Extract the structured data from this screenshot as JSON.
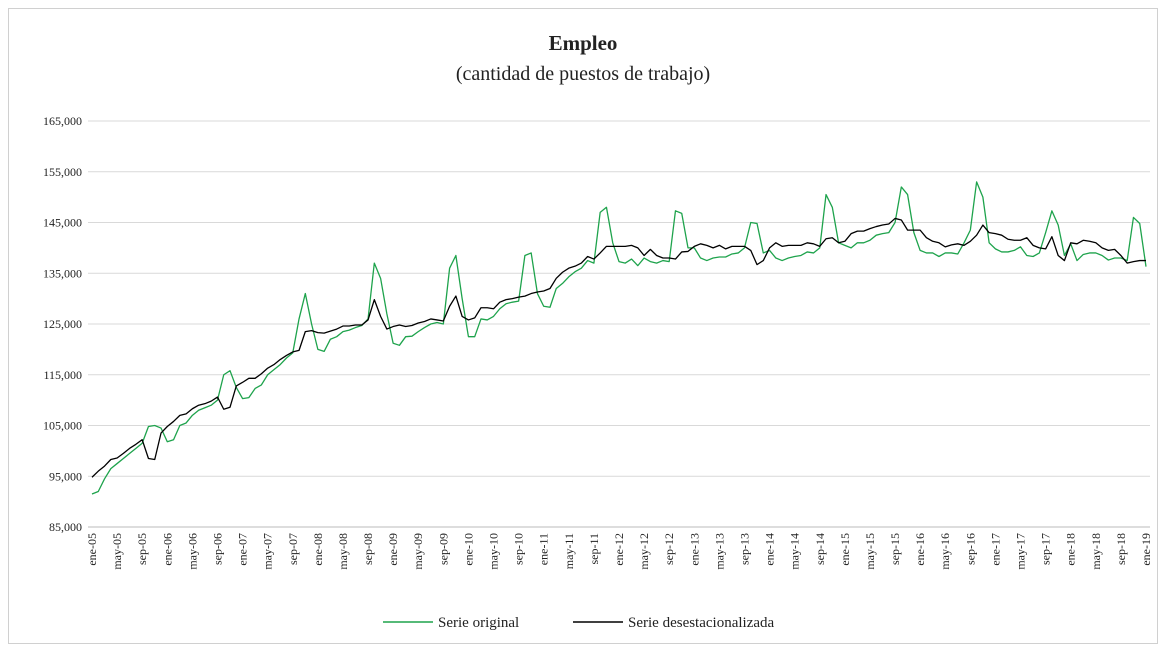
{
  "chart_data": {
    "type": "line",
    "title": "Empleo",
    "subtitle": "(cantidad de puestos de trabajo)",
    "categories": [
      "ene-05",
      null,
      null,
      null,
      "may-05",
      null,
      null,
      null,
      "sep-05",
      null,
      null,
      null,
      "ene-06",
      null,
      null,
      null,
      "may-06",
      null,
      null,
      null,
      "sep-06",
      null,
      null,
      null,
      "ene-07",
      null,
      null,
      null,
      "may-07",
      null,
      null,
      null,
      "sep-07",
      null,
      null,
      null,
      "ene-08",
      null,
      null,
      null,
      "may-08",
      null,
      null,
      null,
      "sep-08",
      null,
      null,
      null,
      "ene-09",
      null,
      null,
      null,
      "may-09",
      null,
      null,
      null,
      "sep-09",
      null,
      null,
      null,
      "ene-10",
      null,
      null,
      null,
      "may-10",
      null,
      null,
      null,
      "sep-10",
      null,
      null,
      null,
      "ene-11",
      null,
      null,
      null,
      "may-11",
      null,
      null,
      null,
      "sep-11",
      null,
      null,
      null,
      "ene-12",
      null,
      null,
      null,
      "may-12",
      null,
      null,
      null,
      "sep-12",
      null,
      null,
      null,
      "ene-13",
      null,
      null,
      null,
      "may-13",
      null,
      null,
      null,
      "sep-13",
      null,
      null,
      null,
      "ene-14",
      null,
      null,
      null,
      "may-14",
      null,
      null,
      null,
      "sep-14",
      null,
      null,
      null,
      "ene-15",
      null,
      null,
      null,
      "may-15",
      null,
      null,
      null,
      "sep-15",
      null,
      null,
      null,
      "ene-16",
      null,
      null,
      null,
      "may-16",
      null,
      null,
      null,
      "sep-16",
      null,
      null,
      null,
      "ene-17",
      null,
      null,
      null,
      "may-17",
      null,
      null,
      null,
      "sep-17",
      null,
      null,
      null,
      "ene-18",
      null,
      null,
      null,
      "may-18",
      null,
      null,
      null,
      "sep-18",
      null,
      null,
      null,
      "ene-19"
    ],
    "series": [
      {
        "name": "Serie original",
        "color": "#1ea34c",
        "values": [
          91500,
          92000,
          94500,
          96500,
          97500,
          98500,
          99500,
          100500,
          101500,
          104800,
          105000,
          104500,
          101800,
          102200,
          105000,
          105500,
          107000,
          108000,
          108500,
          109000,
          110000,
          115000,
          115800,
          112500,
          110300,
          110500,
          112300,
          113000,
          115000,
          116000,
          117000,
          118300,
          119300,
          126000,
          131000,
          125000,
          120000,
          119600,
          122000,
          122500,
          123500,
          123800,
          124300,
          124700,
          126000,
          137000,
          134000,
          127000,
          121200,
          120800,
          122500,
          122600,
          123500,
          124300,
          125000,
          125300,
          125000,
          136000,
          138500,
          130000,
          122500,
          122500,
          126000,
          125800,
          126500,
          128000,
          129000,
          129300,
          129500,
          138500,
          139000,
          131000,
          128500,
          128300,
          132000,
          133000,
          134300,
          135300,
          136000,
          137500,
          137000,
          147000,
          148000,
          141000,
          137300,
          137000,
          137800,
          136500,
          138000,
          137300,
          137000,
          137500,
          137300,
          147300,
          146800,
          140000,
          140000,
          138000,
          137500,
          138000,
          138200,
          138200,
          138800,
          139000,
          140000,
          145000,
          144800,
          139000,
          139500,
          138000,
          137500,
          138000,
          138300,
          138500,
          139200,
          139000,
          140000,
          150500,
          148000,
          141000,
          140500,
          140000,
          141000,
          141000,
          141500,
          142500,
          142800,
          143000,
          145000,
          152000,
          150500,
          143000,
          139500,
          139000,
          139000,
          138300,
          139000,
          139000,
          138800,
          141000,
          143500,
          153000,
          150000,
          141000,
          139800,
          139200,
          139200,
          139500,
          140200,
          138500,
          138300,
          139000,
          143000,
          147300,
          144500,
          138500,
          140800,
          137500,
          138700,
          139000,
          139000,
          138500,
          137600,
          138000,
          138000,
          137500,
          146000,
          144800,
          136300
        ]
      },
      {
        "name": "Serie desestacionalizada",
        "color": "#000000",
        "values": [
          94800,
          96000,
          97000,
          98300,
          98600,
          99500,
          100500,
          101300,
          102200,
          98500,
          98300,
          103500,
          104800,
          105800,
          107000,
          107300,
          108300,
          109000,
          109300,
          109800,
          110600,
          108200,
          108600,
          112800,
          113500,
          114300,
          114300,
          115200,
          116300,
          117000,
          118000,
          118800,
          119500,
          119800,
          123500,
          123700,
          123300,
          123200,
          123600,
          124000,
          124600,
          124600,
          124800,
          124800,
          125800,
          129800,
          126500,
          124000,
          124500,
          124800,
          124500,
          124700,
          125200,
          125500,
          126000,
          125800,
          125600,
          128500,
          130500,
          126500,
          125800,
          126200,
          128200,
          128200,
          128000,
          129300,
          129800,
          130000,
          130300,
          130500,
          131000,
          131300,
          131500,
          132000,
          134000,
          135200,
          136000,
          136400,
          137000,
          138300,
          137800,
          139000,
          140300,
          140300,
          140300,
          140300,
          140500,
          140000,
          138500,
          139700,
          138500,
          138000,
          138000,
          137800,
          139200,
          139300,
          140300,
          140800,
          140500,
          140000,
          140500,
          139800,
          140300,
          140300,
          140300,
          139500,
          136700,
          137500,
          140000,
          141000,
          140300,
          140500,
          140500,
          140500,
          141000,
          140800,
          140300,
          141800,
          142000,
          141000,
          141300,
          142800,
          143300,
          143300,
          143800,
          144200,
          144500,
          144700,
          145800,
          145500,
          143500,
          143500,
          143500,
          142000,
          141300,
          141000,
          140200,
          140600,
          140800,
          140500,
          141300,
          142500,
          144500,
          143000,
          142800,
          142500,
          141700,
          141500,
          141500,
          142000,
          140500,
          140000,
          139800,
          142200,
          138500,
          137500,
          141000,
          140800,
          141500,
          141300,
          141000,
          140000,
          139500,
          139700,
          138500,
          137000,
          137300,
          137500,
          137500
        ]
      }
    ],
    "ylim": [
      85000,
      165000
    ],
    "yticks": [
      {
        "value": 85000,
        "label": "85,000"
      },
      {
        "value": 95000,
        "label": "95,000"
      },
      {
        "value": 105000,
        "label": "105,000"
      },
      {
        "value": 115000,
        "label": "115,000"
      },
      {
        "value": 125000,
        "label": "125,000"
      },
      {
        "value": 135000,
        "label": "135,000"
      },
      {
        "value": 145000,
        "label": "145,000"
      },
      {
        "value": 155000,
        "label": "155,000"
      },
      {
        "value": 165000,
        "label": "165,000"
      }
    ],
    "grid": true,
    "legend": "bottom"
  }
}
